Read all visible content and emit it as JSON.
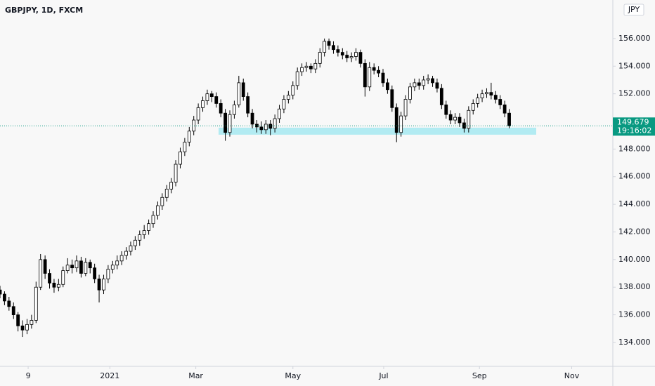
{
  "chart_data": {
    "type": "candlestick",
    "title": "GBPJPY, 1D, FXCM",
    "currency": "JPY",
    "xlim": [
      0,
      272
    ],
    "ylim": [
      132.27,
      158.79
    ],
    "xticks": [
      {
        "value": 12.5,
        "label": "9"
      },
      {
        "value": 48.75,
        "label": "2021"
      },
      {
        "value": 86.9,
        "label": "Mar"
      },
      {
        "value": 130,
        "label": "May"
      },
      {
        "value": 170.3,
        "label": "Jul"
      },
      {
        "value": 212.8,
        "label": "Sep"
      },
      {
        "value": 253.75,
        "label": "Nov"
      }
    ],
    "yticks": [
      {
        "value": 134,
        "label": "134.000"
      },
      {
        "value": 136,
        "label": "136.000"
      },
      {
        "value": 138,
        "label": "138.000"
      },
      {
        "value": 140,
        "label": "140.000"
      },
      {
        "value": 142,
        "label": "142.000"
      },
      {
        "value": 144,
        "label": "144.000"
      },
      {
        "value": 146,
        "label": "146.000"
      },
      {
        "value": 148,
        "label": "148.000"
      },
      {
        "value": 150,
        "label": "150.000"
      },
      {
        "value": 152,
        "label": "152.000"
      },
      {
        "value": 154,
        "label": "154.000"
      },
      {
        "value": 156,
        "label": "156.000"
      }
    ],
    "up_color": "#ffffff",
    "down_color": "#000000",
    "edge_color": "#000000",
    "x": [
      0,
      2,
      4,
      6,
      8,
      10,
      12,
      14,
      16,
      18,
      20,
      22,
      24,
      26,
      28,
      30,
      32,
      34,
      36,
      38,
      40,
      42,
      44,
      46,
      48,
      50,
      52,
      54,
      56,
      58,
      60,
      62,
      64,
      66,
      68,
      70,
      72,
      74,
      76,
      78,
      80,
      82,
      84,
      86,
      88,
      90,
      92,
      94,
      96,
      98,
      100,
      102,
      104,
      106,
      108,
      110,
      112,
      114,
      116,
      118,
      120,
      122,
      124,
      126,
      128,
      130,
      132,
      134,
      136,
      138,
      140,
      142,
      144,
      146,
      148,
      150,
      152,
      154,
      156,
      158,
      160,
      162,
      164,
      166,
      168,
      170,
      172,
      174,
      176,
      178,
      180,
      182,
      184,
      186,
      188,
      190,
      192,
      194,
      196,
      198,
      200,
      202,
      204,
      206,
      208,
      210,
      212,
      214,
      216,
      218,
      220,
      222,
      224,
      226
    ],
    "candles": [
      [
        137.8,
        138.1,
        137.2,
        137.5
      ],
      [
        137.5,
        137.7,
        136.7,
        137.0
      ],
      [
        137.0,
        137.3,
        136.3,
        136.6
      ],
      [
        136.6,
        136.9,
        135.7,
        136.0
      ],
      [
        136.0,
        136.2,
        134.8,
        135.2
      ],
      [
        135.2,
        135.6,
        134.4,
        134.9
      ],
      [
        134.9,
        135.7,
        134.6,
        135.3
      ],
      [
        135.3,
        136.0,
        135.0,
        135.6
      ],
      [
        135.6,
        138.4,
        135.4,
        138.0
      ],
      [
        138.0,
        140.4,
        137.8,
        140.0
      ],
      [
        140.0,
        140.3,
        138.6,
        139.0
      ],
      [
        139.0,
        139.3,
        137.9,
        138.3
      ],
      [
        138.3,
        138.6,
        137.6,
        138.0
      ],
      [
        138.0,
        138.6,
        137.7,
        138.2
      ],
      [
        138.2,
        139.5,
        138.0,
        139.2
      ],
      [
        139.2,
        140.1,
        139.0,
        139.6
      ],
      [
        139.6,
        140.0,
        139.0,
        139.4
      ],
      [
        139.4,
        140.3,
        139.1,
        139.9
      ],
      [
        139.9,
        140.2,
        138.7,
        139.0
      ],
      [
        139.0,
        140.1,
        138.8,
        139.8
      ],
      [
        139.8,
        140.0,
        139.0,
        139.4
      ],
      [
        139.4,
        139.7,
        138.3,
        138.6
      ],
      [
        138.6,
        138.9,
        136.9,
        137.8
      ],
      [
        137.8,
        138.9,
        137.5,
        138.6
      ],
      [
        138.6,
        139.6,
        138.3,
        139.3
      ],
      [
        139.3,
        139.9,
        139.0,
        139.6
      ],
      [
        139.6,
        140.3,
        139.3,
        139.9
      ],
      [
        139.9,
        140.6,
        139.6,
        140.3
      ],
      [
        140.3,
        140.9,
        140.0,
        140.6
      ],
      [
        140.6,
        141.3,
        140.3,
        141.0
      ],
      [
        141.0,
        141.7,
        140.7,
        141.4
      ],
      [
        141.4,
        142.1,
        141.0,
        141.8
      ],
      [
        141.8,
        142.5,
        141.5,
        142.1
      ],
      [
        142.1,
        142.9,
        141.8,
        142.6
      ],
      [
        142.6,
        143.5,
        142.3,
        143.2
      ],
      [
        143.2,
        144.2,
        142.9,
        143.9
      ],
      [
        143.9,
        144.8,
        143.6,
        144.5
      ],
      [
        144.5,
        145.4,
        144.2,
        145.1
      ],
      [
        145.1,
        145.9,
        144.8,
        145.6
      ],
      [
        145.6,
        147.2,
        145.3,
        146.9
      ],
      [
        146.9,
        148.1,
        146.6,
        147.8
      ],
      [
        147.8,
        148.8,
        147.5,
        148.5
      ],
      [
        148.5,
        149.6,
        148.2,
        149.3
      ],
      [
        149.3,
        150.4,
        149.0,
        150.1
      ],
      [
        150.1,
        151.3,
        149.8,
        151.0
      ],
      [
        151.0,
        151.8,
        150.7,
        151.5
      ],
      [
        151.5,
        152.3,
        151.2,
        152.0
      ],
      [
        152.0,
        152.2,
        151.4,
        151.8
      ],
      [
        151.8,
        152.1,
        151.0,
        151.3
      ],
      [
        151.3,
        151.6,
        150.3,
        150.6
      ],
      [
        150.6,
        150.9,
        148.6,
        149.2
      ],
      [
        149.2,
        150.8,
        148.9,
        150.5
      ],
      [
        150.5,
        151.5,
        150.2,
        151.2
      ],
      [
        151.2,
        153.3,
        151.0,
        152.8
      ],
      [
        152.8,
        153.1,
        151.5,
        151.8
      ],
      [
        151.8,
        152.1,
        150.3,
        150.6
      ],
      [
        150.6,
        150.9,
        149.5,
        149.8
      ],
      [
        149.8,
        150.1,
        149.2,
        149.6
      ],
      [
        149.6,
        150.0,
        149.1,
        149.4
      ],
      [
        149.4,
        150.1,
        149.1,
        149.8
      ],
      [
        149.8,
        150.1,
        149.0,
        149.5
      ],
      [
        149.5,
        150.5,
        149.2,
        150.2
      ],
      [
        150.2,
        151.2,
        149.9,
        150.9
      ],
      [
        150.9,
        151.9,
        150.6,
        151.6
      ],
      [
        151.6,
        152.2,
        151.3,
        151.9
      ],
      [
        151.9,
        152.9,
        151.6,
        152.6
      ],
      [
        152.6,
        153.9,
        152.3,
        153.6
      ],
      [
        153.6,
        154.2,
        153.3,
        153.9
      ],
      [
        153.9,
        154.3,
        153.6,
        154.0
      ],
      [
        154.0,
        154.2,
        153.5,
        153.8
      ],
      [
        153.8,
        154.5,
        153.5,
        154.2
      ],
      [
        154.2,
        155.3,
        153.9,
        155.0
      ],
      [
        155.0,
        156.0,
        154.7,
        155.8
      ],
      [
        155.8,
        156.0,
        155.2,
        155.5
      ],
      [
        155.5,
        155.8,
        154.9,
        155.2
      ],
      [
        155.2,
        155.5,
        154.7,
        155.0
      ],
      [
        155.0,
        155.3,
        154.5,
        154.8
      ],
      [
        154.8,
        155.1,
        154.3,
        154.6
      ],
      [
        154.6,
        155.0,
        154.3,
        154.7
      ],
      [
        154.7,
        155.3,
        154.4,
        155.0
      ],
      [
        155.0,
        155.2,
        153.9,
        154.2
      ],
      [
        154.2,
        154.5,
        151.8,
        152.5
      ],
      [
        152.5,
        154.3,
        152.2,
        153.9
      ],
      [
        153.9,
        154.2,
        153.4,
        153.7
      ],
      [
        153.7,
        154.0,
        153.2,
        153.5
      ],
      [
        153.5,
        153.8,
        152.5,
        152.8
      ],
      [
        152.8,
        153.1,
        152.0,
        152.3
      ],
      [
        152.3,
        152.6,
        150.7,
        151.0
      ],
      [
        151.0,
        151.3,
        148.5,
        149.2
      ],
      [
        149.2,
        150.7,
        148.9,
        150.4
      ],
      [
        150.4,
        151.9,
        150.1,
        151.6
      ],
      [
        151.6,
        152.8,
        151.3,
        152.5
      ],
      [
        152.5,
        153.1,
        152.2,
        152.8
      ],
      [
        152.8,
        153.1,
        152.3,
        152.6
      ],
      [
        152.6,
        153.3,
        152.3,
        153.0
      ],
      [
        153.0,
        153.4,
        152.7,
        153.1
      ],
      [
        153.1,
        153.3,
        152.5,
        152.8
      ],
      [
        152.8,
        153.1,
        152.1,
        152.4
      ],
      [
        152.4,
        152.7,
        150.9,
        151.2
      ],
      [
        151.2,
        151.5,
        150.2,
        150.5
      ],
      [
        150.5,
        150.8,
        149.8,
        150.1
      ],
      [
        150.1,
        150.6,
        149.8,
        150.3
      ],
      [
        150.3,
        150.6,
        149.6,
        149.9
      ],
      [
        149.9,
        150.2,
        149.2,
        149.5
      ],
      [
        149.5,
        151.1,
        149.2,
        150.8
      ],
      [
        150.8,
        151.6,
        150.5,
        151.3
      ],
      [
        151.3,
        152.0,
        151.0,
        151.7
      ],
      [
        151.7,
        152.3,
        151.4,
        152.0
      ],
      [
        152.0,
        152.4,
        151.7,
        152.1
      ],
      [
        152.1,
        152.8,
        151.6,
        151.9
      ],
      [
        151.9,
        152.2,
        151.3,
        151.6
      ],
      [
        151.6,
        151.9,
        150.9,
        151.2
      ],
      [
        151.2,
        151.5,
        150.3,
        150.6
      ],
      [
        150.6,
        150.9,
        149.5,
        149.679
      ]
    ],
    "zone": {
      "x": [
        97,
        238
      ],
      "y": [
        149.04,
        149.55
      ],
      "color": "#b2ebf2"
    },
    "last_price": {
      "value": 149.679,
      "label": "149.679",
      "countdown": "19:16:02",
      "color": "#089981"
    }
  }
}
